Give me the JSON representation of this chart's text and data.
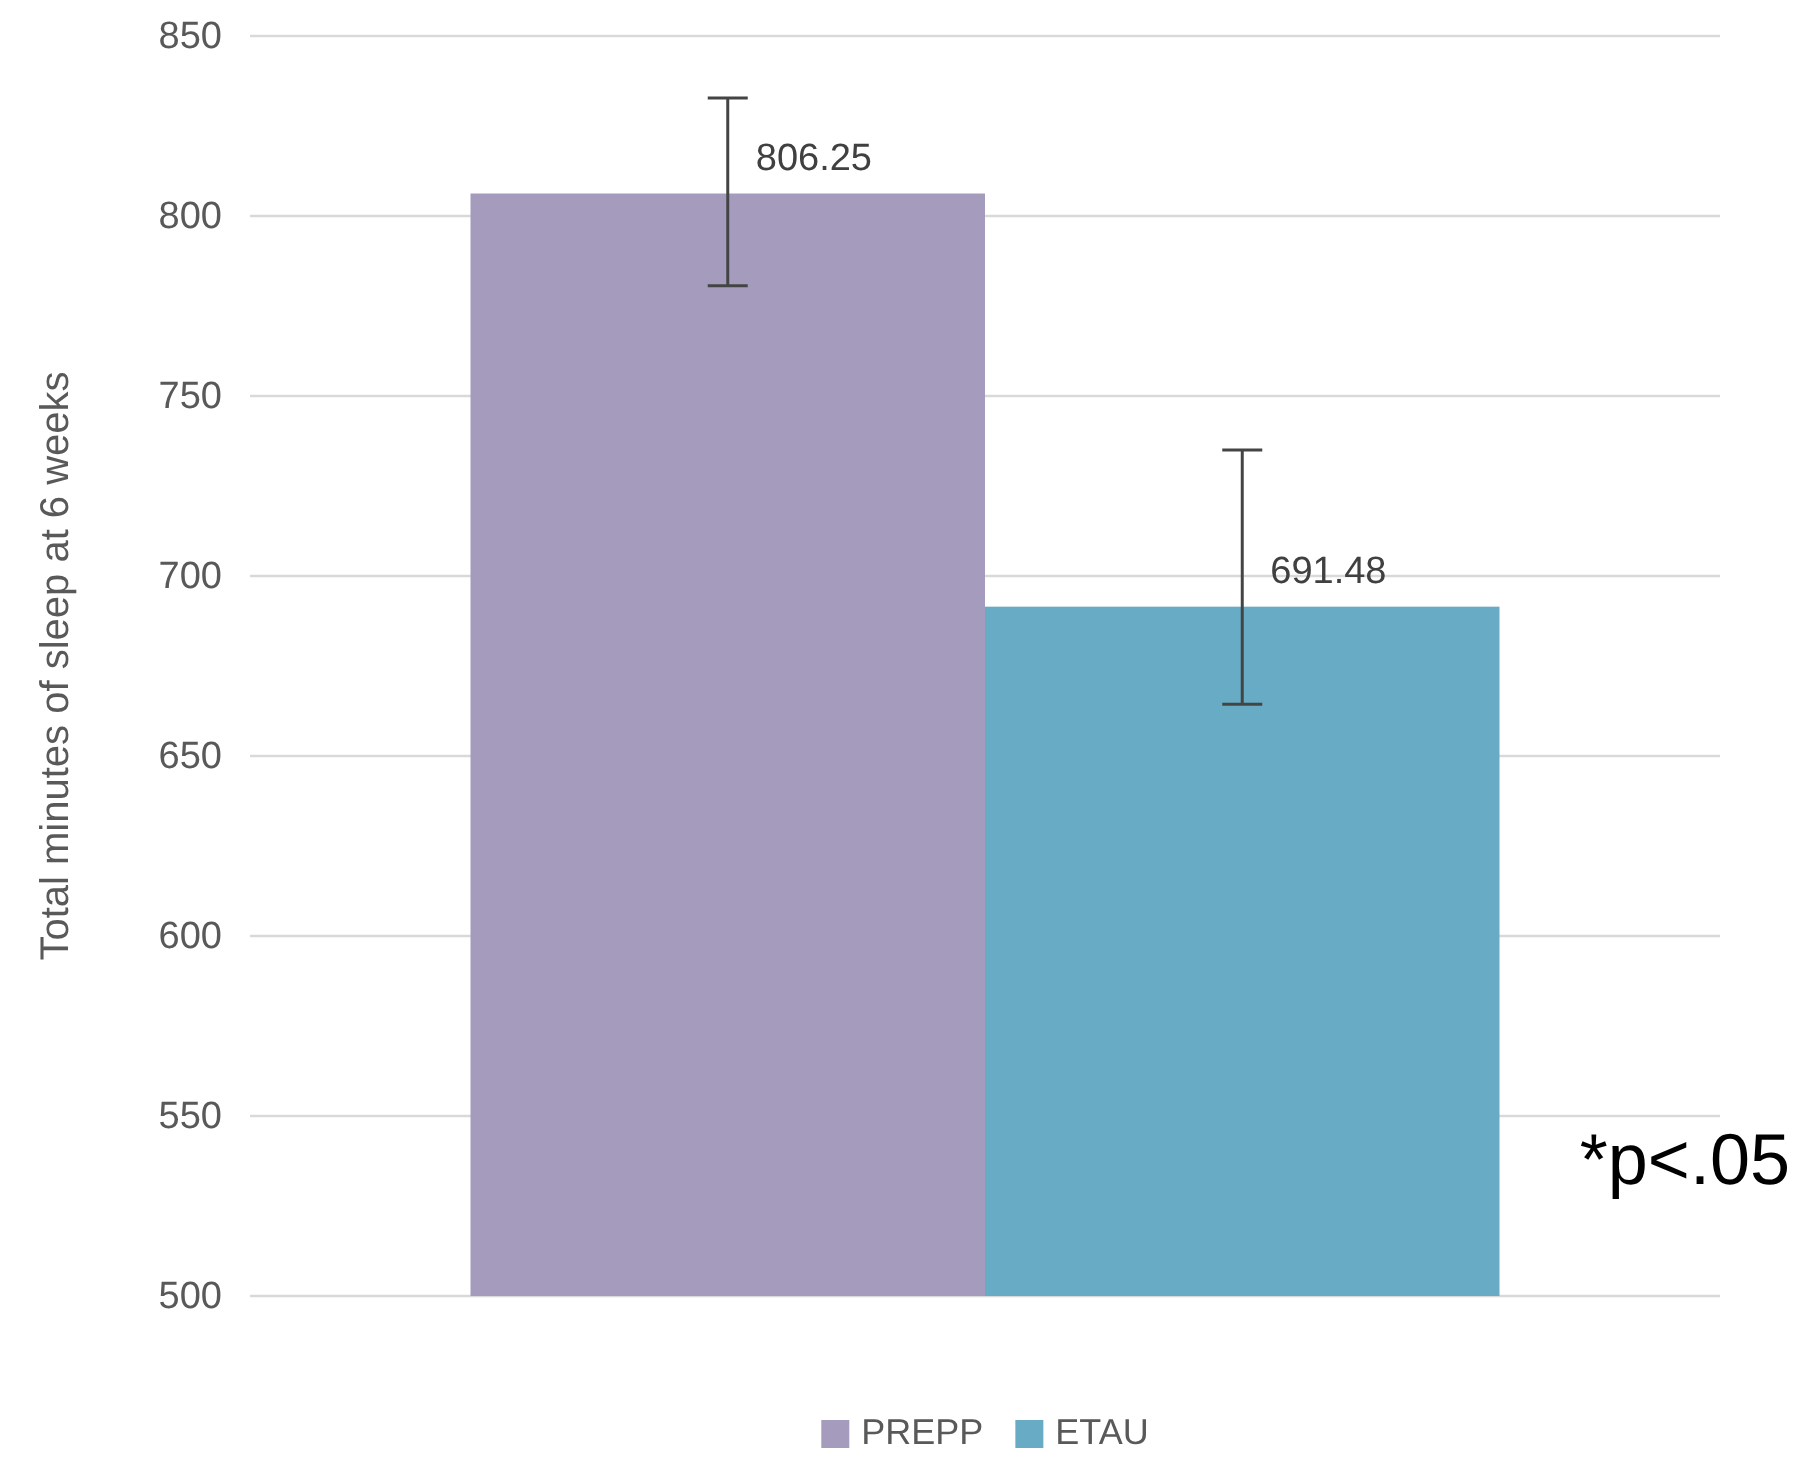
{
  "chart_data": {
    "type": "bar",
    "ylabel": "Total minutes of sleep at 6 weeks",
    "categories": [
      null
    ],
    "series": [
      {
        "name": "PREPP",
        "color": "#a59bbd",
        "values": [
          806.25
        ],
        "errors": [
          [
            780.6,
            832.8
          ]
        ]
      },
      {
        "name": "ETAU",
        "color": "#67abc4",
        "values": [
          691.48
        ],
        "errors": [
          [
            664.4,
            735
          ]
        ]
      }
    ],
    "ylim": [
      500,
      850
    ],
    "yticks": [
      500,
      550,
      600,
      650,
      700,
      750,
      800,
      850
    ],
    "grid": "y",
    "legend": "bottom",
    "data_labels": true,
    "annotations": [
      "*p<.05"
    ]
  }
}
